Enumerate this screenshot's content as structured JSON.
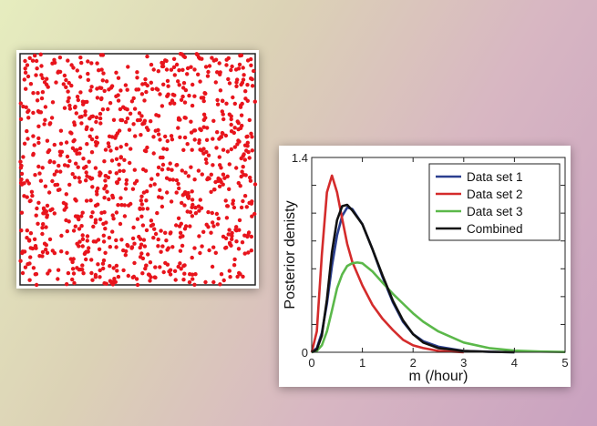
{
  "chart_data": [
    {
      "type": "scatter",
      "title": "",
      "xlabel": "",
      "ylabel": "",
      "xlim": [
        0,
        1
      ],
      "ylim": [
        0,
        1
      ],
      "grid": false,
      "point_color": "#e8141c",
      "n_points": 1000,
      "distribution": "uniform random points"
    },
    {
      "type": "line",
      "title": "",
      "xlabel": "m (/hour)",
      "ylabel": "Posterior denisty",
      "xlim": [
        0,
        5
      ],
      "ylim": [
        0,
        1.4
      ],
      "x_ticks": [
        "0",
        "1",
        "2",
        "3",
        "4",
        "5"
      ],
      "y_ticks": [
        "0",
        "1.4"
      ],
      "grid": false,
      "legend_position": "top-right",
      "series": [
        {
          "name": "Data set 1",
          "color": "#2b3f8f",
          "x": [
            0,
            0.1,
            0.2,
            0.3,
            0.4,
            0.5,
            0.6,
            0.7,
            0.8,
            1.0,
            1.2,
            1.4,
            1.6,
            1.8,
            2.0,
            2.2,
            2.5,
            3.0,
            3.5,
            4.0
          ],
          "y": [
            0,
            0.03,
            0.14,
            0.35,
            0.62,
            0.84,
            0.98,
            1.04,
            1.03,
            0.92,
            0.74,
            0.54,
            0.36,
            0.22,
            0.13,
            0.08,
            0.04,
            0.01,
            0.004,
            0
          ]
        },
        {
          "name": "Data set 2",
          "color": "#d42b2b",
          "x": [
            0,
            0.1,
            0.2,
            0.3,
            0.4,
            0.5,
            0.6,
            0.7,
            0.8,
            1.0,
            1.2,
            1.4,
            1.6,
            1.8,
            2.0,
            2.2,
            2.5,
            3.0
          ],
          "y": [
            0,
            0.15,
            0.7,
            1.15,
            1.27,
            1.15,
            0.96,
            0.78,
            0.65,
            0.48,
            0.34,
            0.24,
            0.16,
            0.09,
            0.05,
            0.03,
            0.01,
            0
          ]
        },
        {
          "name": "Data set 3",
          "color": "#5bb84a",
          "x": [
            0,
            0.1,
            0.2,
            0.3,
            0.4,
            0.5,
            0.6,
            0.7,
            0.8,
            0.9,
            1.0,
            1.2,
            1.4,
            1.6,
            1.8,
            2.0,
            2.2,
            2.5,
            3.0,
            3.5,
            4.0,
            4.5,
            5.0
          ],
          "y": [
            0,
            0.01,
            0.05,
            0.15,
            0.3,
            0.46,
            0.56,
            0.62,
            0.64,
            0.645,
            0.64,
            0.58,
            0.5,
            0.42,
            0.35,
            0.28,
            0.22,
            0.15,
            0.07,
            0.03,
            0.012,
            0.005,
            0.002
          ]
        },
        {
          "name": "Combined",
          "color": "#111111",
          "x": [
            0,
            0.1,
            0.2,
            0.3,
            0.4,
            0.5,
            0.6,
            0.7,
            0.8,
            1.0,
            1.2,
            1.4,
            1.6,
            1.8,
            2.0,
            2.2,
            2.5,
            3.0,
            3.5,
            4.0
          ],
          "y": [
            0,
            0.02,
            0.12,
            0.38,
            0.72,
            0.95,
            1.05,
            1.06,
            1.02,
            0.92,
            0.74,
            0.55,
            0.37,
            0.23,
            0.13,
            0.07,
            0.03,
            0.01,
            0.003,
            0
          ]
        }
      ]
    }
  ]
}
